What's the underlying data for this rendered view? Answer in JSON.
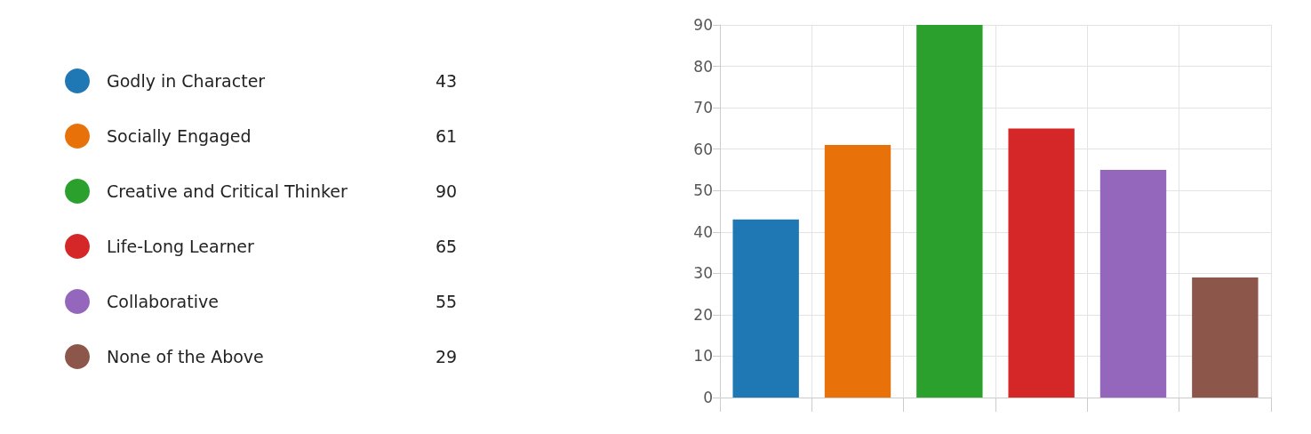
{
  "chart_data": {
    "type": "bar",
    "categories": [
      null,
      null,
      null,
      null,
      null,
      null
    ],
    "series": [
      {
        "name": "Godly in Character",
        "color": "#1f77b4",
        "values": [
          43,
          null,
          null,
          null,
          null,
          null
        ]
      },
      {
        "name": "Socially Engaged",
        "color": "#e8710a",
        "values": [
          null,
          61,
          null,
          null,
          null,
          null
        ]
      },
      {
        "name": "Creative and Critical Thinker",
        "color": "#2ca02c",
        "values": [
          null,
          null,
          90,
          null,
          null,
          null
        ]
      },
      {
        "name": "Life-Long Learner",
        "color": "#d62728",
        "values": [
          null,
          null,
          null,
          65,
          null,
          null
        ]
      },
      {
        "name": "Collaborative",
        "color": "#9467bd",
        "values": [
          null,
          null,
          null,
          null,
          55,
          null
        ]
      },
      {
        "name": "None of the Above",
        "color": "#8c564b",
        "values": [
          null,
          null,
          null,
          null,
          null,
          29
        ]
      }
    ],
    "ylim": [
      0,
      90
    ],
    "yticks": [
      0,
      10,
      20,
      30,
      40,
      50,
      60,
      70,
      80,
      90
    ],
    "annotations": [
      "43",
      "61",
      "90",
      "65",
      "55",
      "29"
    ],
    "grid": true,
    "legend": "left",
    "tick_labels": "y"
  }
}
